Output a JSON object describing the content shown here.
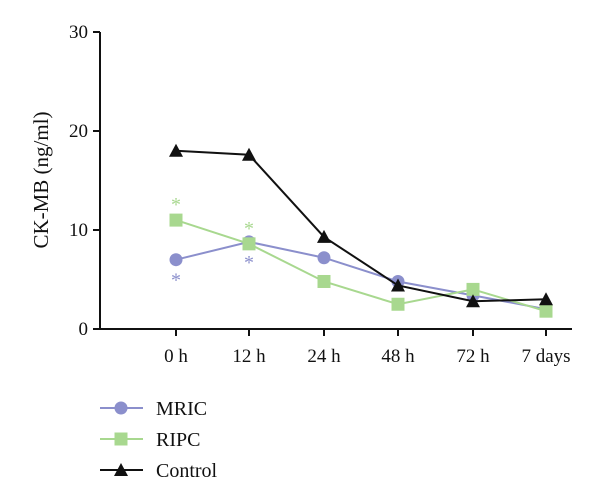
{
  "chart_data": {
    "type": "line",
    "title": "",
    "xlabel": "",
    "ylabel": "CK-MB (ng/ml)",
    "categories": [
      "0 h",
      "12 h",
      "24 h",
      "48 h",
      "72 h",
      "7 days"
    ],
    "ylim": [
      0,
      30
    ],
    "yticks": [
      "0",
      "10",
      "20",
      "30"
    ],
    "grid": false,
    "legend": "bottom-left",
    "series": [
      {
        "name": "MRIC",
        "color": "#8b8fcc",
        "marker": "circle",
        "values": [
          7.0,
          8.8,
          7.2,
          4.8,
          3.4,
          2.0
        ],
        "significance": [
          "*",
          "*",
          "",
          "",
          "",
          ""
        ],
        "significance_position": "below"
      },
      {
        "name": "RIPC",
        "color": "#a8d88f",
        "marker": "square",
        "values": [
          11.0,
          8.6,
          4.8,
          2.5,
          4.0,
          1.8
        ],
        "significance": [
          "*",
          "*",
          "",
          "",
          "",
          ""
        ],
        "significance_position": "above"
      },
      {
        "name": "Control",
        "color": "#111111",
        "marker": "triangle",
        "values": [
          18.0,
          17.6,
          9.3,
          4.4,
          2.8,
          3.0
        ],
        "significance": [
          "",
          "",
          "",
          "",
          "",
          ""
        ],
        "significance_position": "none"
      }
    ]
  }
}
